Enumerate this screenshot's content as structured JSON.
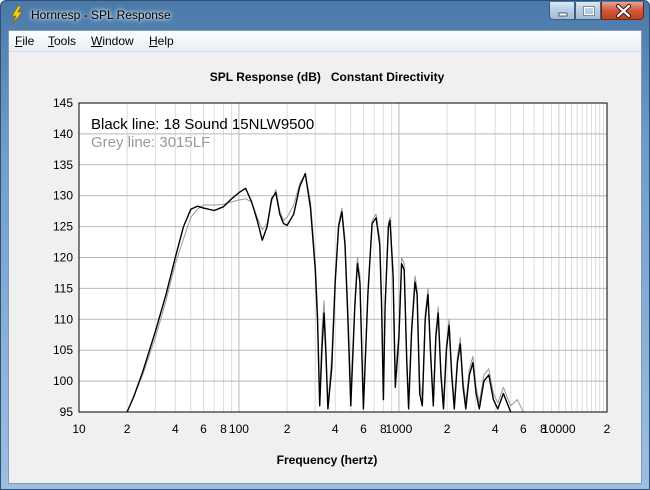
{
  "window": {
    "title": "Hornresp - SPL Response",
    "caption_buttons": [
      "minimize-icon",
      "maximize-icon",
      "close-icon"
    ]
  },
  "menu": {
    "items": [
      {
        "label": "File",
        "accel": "F",
        "rest": "ile"
      },
      {
        "label": "Tools",
        "accel": "T",
        "rest": "ools"
      },
      {
        "label": "Window",
        "accel": "W",
        "rest": "indow"
      },
      {
        "label": "Help",
        "accel": "H",
        "rest": "elp"
      }
    ]
  },
  "chart_data": {
    "type": "line",
    "title": "SPL Response (dB)   Constant Directivity",
    "xlabel": "Frequency (hertz)",
    "ylabel": "",
    "xscale": "log",
    "xlim": [
      10,
      20000
    ],
    "ylim": [
      95,
      145
    ],
    "yticks": [
      95,
      100,
      105,
      110,
      115,
      120,
      125,
      130,
      135,
      140,
      145
    ],
    "xtick_labels": [
      {
        "value": 10,
        "label": "10"
      },
      {
        "value": 20,
        "label": "2"
      },
      {
        "value": 40,
        "label": "4"
      },
      {
        "value": 60,
        "label": "6"
      },
      {
        "value": 80,
        "label": "8"
      },
      {
        "value": 100,
        "label": "100"
      },
      {
        "value": 200,
        "label": "2"
      },
      {
        "value": 400,
        "label": "4"
      },
      {
        "value": 600,
        "label": "6"
      },
      {
        "value": 800,
        "label": "8"
      },
      {
        "value": 1000,
        "label": "1000"
      },
      {
        "value": 2000,
        "label": "2"
      },
      {
        "value": 4000,
        "label": "4"
      },
      {
        "value": 6000,
        "label": "6"
      },
      {
        "value": 8000,
        "label": "8"
      },
      {
        "value": 10000,
        "label": "10000"
      },
      {
        "value": 20000,
        "label": "2"
      }
    ],
    "grid": true,
    "annotations": [
      {
        "text": "Black line: 18 Sound 15NLW9500",
        "color": "#000000"
      },
      {
        "text": "Grey line: 3015LF",
        "color": "#999999"
      }
    ],
    "series": [
      {
        "color": "#000000",
        "points": [
          [
            20,
            95
          ],
          [
            22,
            97.5
          ],
          [
            25,
            101.5
          ],
          [
            30,
            108
          ],
          [
            35,
            114
          ],
          [
            40,
            120
          ],
          [
            45,
            125
          ],
          [
            50,
            127.8
          ],
          [
            55,
            128.3
          ],
          [
            60,
            128
          ],
          [
            70,
            127.6
          ],
          [
            80,
            128.2
          ],
          [
            90,
            129.5
          ],
          [
            100,
            130.5
          ],
          [
            110,
            131.2
          ],
          [
            120,
            129
          ],
          [
            130,
            126
          ],
          [
            140,
            122.8
          ],
          [
            150,
            125
          ],
          [
            160,
            129.5
          ],
          [
            170,
            130.5
          ],
          [
            180,
            127
          ],
          [
            190,
            125.5
          ],
          [
            200,
            125.2
          ],
          [
            220,
            127
          ],
          [
            240,
            131.5
          ],
          [
            260,
            133.6
          ],
          [
            280,
            128
          ],
          [
            300,
            118
          ],
          [
            310,
            110
          ],
          [
            320,
            96
          ],
          [
            330,
            105
          ],
          [
            340,
            111
          ],
          [
            350,
            104
          ],
          [
            360,
            95.5
          ],
          [
            380,
            102
          ],
          [
            400,
            116
          ],
          [
            420,
            125
          ],
          [
            440,
            127.4
          ],
          [
            460,
            122
          ],
          [
            480,
            110
          ],
          [
            500,
            96
          ],
          [
            530,
            112
          ],
          [
            550,
            119
          ],
          [
            570,
            116
          ],
          [
            600,
            95.5
          ],
          [
            640,
            114
          ],
          [
            680,
            125.5
          ],
          [
            720,
            126.4
          ],
          [
            760,
            122
          ],
          [
            780,
            112
          ],
          [
            800,
            97
          ],
          [
            820,
            112
          ],
          [
            860,
            125
          ],
          [
            880,
            126
          ],
          [
            920,
            117
          ],
          [
            950,
            99
          ],
          [
            1000,
            107
          ],
          [
            1040,
            119
          ],
          [
            1080,
            118
          ],
          [
            1120,
            103
          ],
          [
            1150,
            95.5
          ],
          [
            1200,
            108
          ],
          [
            1260,
            116
          ],
          [
            1300,
            114
          ],
          [
            1350,
            98
          ],
          [
            1400,
            96
          ],
          [
            1460,
            110
          ],
          [
            1520,
            114
          ],
          [
            1580,
            104
          ],
          [
            1640,
            96
          ],
          [
            1700,
            107
          ],
          [
            1760,
            111
          ],
          [
            1830,
            101
          ],
          [
            1900,
            95.5
          ],
          [
            1980,
            105
          ],
          [
            2060,
            109
          ],
          [
            2140,
            101
          ],
          [
            2220,
            95.5
          ],
          [
            2320,
            103
          ],
          [
            2420,
            106
          ],
          [
            2520,
            99
          ],
          [
            2620,
            95.5
          ],
          [
            2760,
            101
          ],
          [
            2900,
            103
          ],
          [
            3040,
            98
          ],
          [
            3180,
            95.5
          ],
          [
            3400,
            100
          ],
          [
            3650,
            101
          ],
          [
            3900,
            97
          ],
          [
            4150,
            95.5
          ],
          [
            4500,
            98
          ],
          [
            5000,
            95
          ]
        ]
      },
      {
        "color": "#999999",
        "points": [
          [
            20,
            95
          ],
          [
            22,
            97.5
          ],
          [
            25,
            101
          ],
          [
            30,
            107
          ],
          [
            35,
            113
          ],
          [
            40,
            119
          ],
          [
            45,
            123
          ],
          [
            50,
            126.5
          ],
          [
            55,
            127.8
          ],
          [
            60,
            128.5
          ],
          [
            70,
            128.5
          ],
          [
            80,
            128.6
          ],
          [
            90,
            129
          ],
          [
            100,
            129.3
          ],
          [
            110,
            129.5
          ],
          [
            120,
            129
          ],
          [
            130,
            126.5
          ],
          [
            140,
            124.5
          ],
          [
            150,
            125.5
          ],
          [
            160,
            129
          ],
          [
            170,
            131
          ],
          [
            180,
            127.5
          ],
          [
            190,
            126
          ],
          [
            200,
            126.5
          ],
          [
            220,
            128.5
          ],
          [
            240,
            132
          ],
          [
            260,
            133.5
          ],
          [
            280,
            129
          ],
          [
            300,
            119
          ],
          [
            310,
            112
          ],
          [
            320,
            97
          ],
          [
            330,
            108
          ],
          [
            340,
            113
          ],
          [
            350,
            106
          ],
          [
            360,
            96
          ],
          [
            380,
            104
          ],
          [
            400,
            117
          ],
          [
            420,
            125.5
          ],
          [
            440,
            128
          ],
          [
            460,
            123
          ],
          [
            480,
            112
          ],
          [
            500,
            98
          ],
          [
            530,
            113
          ],
          [
            550,
            120
          ],
          [
            570,
            117
          ],
          [
            600,
            96.5
          ],
          [
            640,
            115
          ],
          [
            680,
            126
          ],
          [
            720,
            127
          ],
          [
            760,
            123
          ],
          [
            780,
            114
          ],
          [
            800,
            99
          ],
          [
            820,
            113
          ],
          [
            860,
            125.5
          ],
          [
            880,
            126.5
          ],
          [
            920,
            118
          ],
          [
            950,
            101
          ],
          [
            1000,
            108
          ],
          [
            1040,
            120
          ],
          [
            1080,
            119
          ],
          [
            1120,
            104
          ],
          [
            1150,
            97
          ],
          [
            1200,
            109
          ],
          [
            1260,
            117
          ],
          [
            1300,
            115
          ],
          [
            1350,
            100
          ],
          [
            1400,
            97
          ],
          [
            1460,
            111
          ],
          [
            1520,
            115
          ],
          [
            1580,
            105
          ],
          [
            1640,
            97
          ],
          [
            1700,
            108
          ],
          [
            1760,
            112
          ],
          [
            1830,
            102
          ],
          [
            1900,
            96.5
          ],
          [
            1980,
            106
          ],
          [
            2060,
            110
          ],
          [
            2140,
            102
          ],
          [
            2220,
            96.5
          ],
          [
            2320,
            104
          ],
          [
            2420,
            107
          ],
          [
            2520,
            100
          ],
          [
            2620,
            96.5
          ],
          [
            2760,
            102
          ],
          [
            2900,
            104
          ],
          [
            3040,
            99
          ],
          [
            3180,
            96.5
          ],
          [
            3400,
            101
          ],
          [
            3650,
            102
          ],
          [
            3900,
            98
          ],
          [
            4150,
            96.5
          ],
          [
            4500,
            99
          ],
          [
            5000,
            96
          ],
          [
            5500,
            97
          ],
          [
            6000,
            95
          ]
        ]
      }
    ]
  }
}
